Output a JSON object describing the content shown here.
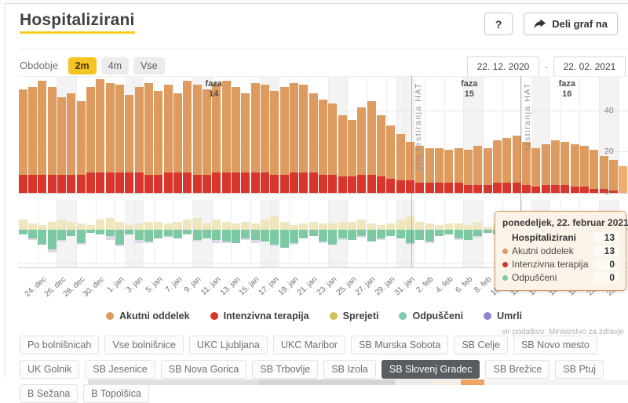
{
  "header": {
    "title": "Hospitalizirani",
    "help_label": "?",
    "share_label": "Deli graf na"
  },
  "controls": {
    "period_label": "Obdobje",
    "periods": [
      {
        "label": "2m",
        "selected": true
      },
      {
        "label": "4m",
        "selected": false
      },
      {
        "label": "Vse",
        "selected": false
      }
    ],
    "date_from": "22. 12. 2020",
    "date_separator": "-",
    "date_to": "22. 02. 2021"
  },
  "chart_data": {
    "type": "bar",
    "title": "Hospitalizirani",
    "x_range": [
      "22. 12. 2020",
      "22. 02. 2021"
    ],
    "tick_labels": [
      "24. dec",
      "26. dec",
      "28. dec",
      "30. dec",
      "1. jan",
      "3. jan",
      "5. jan",
      "7. jan",
      "9. jan",
      "11. jan",
      "13. jan",
      "15. jan",
      "17. jan",
      "19. jan",
      "21. jan",
      "23. jan",
      "25. jan",
      "27. jan",
      "29. jan",
      "31. jan",
      "2. feb",
      "4. feb",
      "6. feb",
      "8. feb",
      "10. feb",
      "12. feb",
      "14. feb",
      "16. feb",
      "18. feb",
      "20. feb",
      "22. feb"
    ],
    "upper": {
      "ylim": [
        0,
        57
      ],
      "yticks": [
        0,
        20,
        40
      ],
      "stacked": true,
      "series_names": [
        "Intenzivna terapija",
        "Akutni oddelek"
      ],
      "total_hospitalized": [
        51,
        52,
        55,
        52,
        47,
        49,
        45,
        52,
        56,
        54,
        53,
        48,
        52,
        54,
        50,
        53,
        49,
        55,
        53,
        51,
        54,
        55,
        52,
        49,
        54,
        53,
        50,
        52,
        54,
        53,
        49,
        46,
        44,
        38,
        36,
        42,
        45,
        38,
        33,
        29,
        25,
        23,
        22,
        22,
        21,
        22,
        21,
        23,
        22,
        26,
        27,
        28,
        25,
        22,
        24,
        26,
        25,
        24,
        23,
        21,
        18,
        16,
        13
      ],
      "icu": [
        9,
        9,
        9,
        9,
        9,
        9,
        9,
        10,
        10,
        10,
        10,
        10,
        10,
        9,
        9,
        10,
        10,
        10,
        9,
        9,
        10,
        10,
        10,
        10,
        10,
        10,
        9,
        9,
        10,
        10,
        10,
        9,
        9,
        8,
        8,
        9,
        9,
        8,
        7,
        6,
        6,
        5,
        5,
        5,
        5,
        5,
        4,
        4,
        4,
        5,
        5,
        5,
        4,
        3,
        4,
        4,
        4,
        3,
        3,
        2,
        2,
        1,
        0
      ]
    },
    "lower": {
      "ylim": [
        -22,
        9
      ],
      "yticks": [
        0,
        -20
      ],
      "sprejeti": [
        6,
        4,
        3,
        5,
        6,
        5,
        4,
        3,
        6,
        7,
        5,
        3,
        4,
        5,
        5,
        4,
        5,
        6,
        7,
        4,
        6,
        5,
        4,
        5,
        4,
        6,
        8,
        5,
        3,
        4,
        5,
        4,
        4,
        5,
        5,
        6,
        4,
        3,
        4,
        6,
        8,
        5,
        4,
        3,
        4,
        4,
        3,
        5,
        2,
        4,
        5,
        2,
        3,
        2,
        3,
        4,
        2,
        3,
        2,
        3,
        2,
        1,
        1
      ],
      "odpusceni": [
        3,
        5,
        9,
        12,
        6,
        4,
        8,
        2,
        3,
        4,
        9,
        3,
        6,
        7,
        5,
        4,
        5,
        3,
        6,
        5,
        6,
        7,
        8,
        5,
        6,
        7,
        9,
        11,
        8,
        5,
        4,
        7,
        9,
        5,
        6,
        4,
        7,
        5,
        4,
        5,
        8,
        6,
        7,
        4,
        3,
        5,
        6,
        4,
        2,
        3,
        4,
        5,
        3,
        4,
        10,
        6,
        5,
        4,
        3,
        5,
        6,
        4,
        0
      ],
      "umrli": [
        0,
        1,
        0,
        2,
        1,
        0,
        1,
        0,
        0,
        2,
        1,
        0,
        2,
        1,
        0,
        1,
        0,
        0,
        1,
        0,
        2,
        1,
        0,
        1,
        2,
        0,
        1,
        0,
        1,
        0,
        0,
        1,
        0,
        1,
        0,
        1,
        0,
        1,
        0,
        0,
        1,
        0,
        1,
        0,
        0,
        1,
        0,
        1,
        0,
        0,
        1,
        0,
        0,
        1,
        0,
        1,
        0,
        0,
        1,
        0,
        0,
        0,
        0
      ]
    },
    "phase_labels": [
      {
        "line1": "faza",
        "line2": "14",
        "day": 20.2
      },
      {
        "line1": "faza",
        "line2": "15",
        "day": 46.6
      },
      {
        "line1": "faza",
        "line2": "16",
        "day": 56.7
      }
    ],
    "markers": [
      {
        "day": 40.6,
        "label": "žim testiranja HAT"
      },
      {
        "day": 51.9,
        "label": "testiranja HAT"
      }
    ],
    "weekend_bands": [
      [
        4,
        6
      ],
      [
        11,
        13
      ],
      [
        18,
        20
      ],
      [
        25,
        27
      ],
      [
        32,
        34
      ],
      [
        39,
        41
      ],
      [
        46,
        48
      ],
      [
        53,
        55
      ],
      [
        60,
        62
      ]
    ],
    "colors": {
      "akutni": "#de9b5f",
      "akutni_hover": "#f0ad6e",
      "icu": "#d8352c",
      "sprejeti": "#efe6bd",
      "odpusceni": "#7cc9a4",
      "umrli_bar": "#dcd8ea",
      "grid": "#ececec"
    }
  },
  "tooltip": {
    "title": "ponedeljek, 22. februar 2021",
    "rows": [
      {
        "label": "Hospitalizirani",
        "value": "13",
        "bold": true
      },
      {
        "label": "Akutni oddelek",
        "value": "13",
        "dot": "#de9b5f"
      },
      {
        "label": "Intenzivna terapija",
        "value": "0",
        "dot": "#d8352c"
      },
      {
        "label": "Odpuščeni",
        "value": "0",
        "dot": "#7cc9a4"
      }
    ]
  },
  "legend": [
    {
      "label": "Akutni oddelek",
      "color": "#de9b5f"
    },
    {
      "label": "Intenzivna terapija",
      "color": "#d8352c"
    },
    {
      "label": "Sprejeti",
      "color": "#cfc05a"
    },
    {
      "label": "Odpuščeni",
      "color": "#7fcbaa"
    },
    {
      "label": "Umrli",
      "color": "#9384c9"
    }
  ],
  "source": "vir podatkov: Ministrstvo za zdravje",
  "hospitals": {
    "items": [
      {
        "label": "Po bolnišnicah",
        "selected": false
      },
      {
        "label": "Vse bolnišnice",
        "selected": false
      },
      {
        "label": "UKC Ljubljana",
        "selected": false
      },
      {
        "label": "UKC Maribor",
        "selected": false
      },
      {
        "label": "SB Murska Sobota",
        "selected": false
      },
      {
        "label": "SB Celje",
        "selected": false
      },
      {
        "label": "SB Novo mesto",
        "selected": false
      },
      {
        "label": "UK Golnik",
        "selected": false
      },
      {
        "label": "SB Jesenice",
        "selected": false
      },
      {
        "label": "SB Nova Gorica",
        "selected": false
      },
      {
        "label": "SB Trbovlje",
        "selected": false
      },
      {
        "label": "SB Izola",
        "selected": false
      },
      {
        "label": "SB Slovenj Gradec",
        "selected": true
      },
      {
        "label": "SB Brežice",
        "selected": false
      },
      {
        "label": "SB Ptuj",
        "selected": false
      },
      {
        "label": "B Sežana",
        "selected": false
      },
      {
        "label": "B Topolšica",
        "selected": false
      }
    ]
  }
}
